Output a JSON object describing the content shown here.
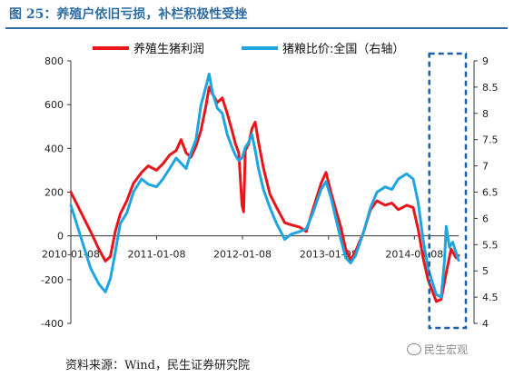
{
  "figure": {
    "title": "图 25：养殖户依旧亏损，补栏积极性受挫",
    "source": "资料来源：Wind，民生证券研究院",
    "watermark": "民生宏观"
  },
  "chart_data": {
    "type": "line",
    "x_tick_labels": [
      "2010-01-08",
      "2011-01-08",
      "2012-01-08",
      "2013-01-08",
      "2014-01-08"
    ],
    "x_range": [
      "2010-01-08",
      "2014-07-15"
    ],
    "y_left": {
      "range": [
        -400,
        800
      ],
      "ticks": [
        -400,
        -200,
        0,
        200,
        400,
        600,
        800
      ]
    },
    "y_right": {
      "range": [
        4,
        9
      ],
      "ticks": [
        4,
        4.5,
        5,
        5.5,
        6,
        6.5,
        7,
        7.5,
        8,
        8.5,
        9
      ]
    },
    "legend_position": "top",
    "grid": false,
    "series": [
      {
        "name": "养殖生猪利润",
        "axis": "left",
        "color": "#e8151b",
        "points": [
          [
            "2010-01-08",
            200
          ],
          [
            "2010-02-05",
            140
          ],
          [
            "2010-03-05",
            80
          ],
          [
            "2010-04-02",
            20
          ],
          [
            "2010-05-07",
            -60
          ],
          [
            "2010-06-04",
            -115
          ],
          [
            "2010-06-25",
            -95
          ],
          [
            "2010-07-16",
            20
          ],
          [
            "2010-08-06",
            100
          ],
          [
            "2010-09-03",
            160
          ],
          [
            "2010-10-01",
            240
          ],
          [
            "2010-11-05",
            290
          ],
          [
            "2010-12-03",
            320
          ],
          [
            "2011-01-07",
            300
          ],
          [
            "2011-02-04",
            330
          ],
          [
            "2011-03-04",
            370
          ],
          [
            "2011-04-01",
            390
          ],
          [
            "2011-04-22",
            440
          ],
          [
            "2011-05-13",
            380
          ],
          [
            "2011-06-03",
            360
          ],
          [
            "2011-06-24",
            410
          ],
          [
            "2011-07-15",
            480
          ],
          [
            "2011-08-05",
            590
          ],
          [
            "2011-08-19",
            680
          ],
          [
            "2011-09-02",
            650
          ],
          [
            "2011-09-23",
            610
          ],
          [
            "2011-10-14",
            630
          ],
          [
            "2011-11-04",
            560
          ],
          [
            "2011-11-25",
            480
          ],
          [
            "2011-12-09",
            420
          ],
          [
            "2011-12-23",
            380
          ],
          [
            "2012-01-06",
            140
          ],
          [
            "2012-01-13",
            110
          ],
          [
            "2012-01-20",
            390
          ],
          [
            "2012-02-03",
            420
          ],
          [
            "2012-02-17",
            490
          ],
          [
            "2012-03-02",
            520
          ],
          [
            "2012-03-16",
            430
          ],
          [
            "2012-04-06",
            310
          ],
          [
            "2012-05-04",
            190
          ],
          [
            "2012-06-01",
            130
          ],
          [
            "2012-07-06",
            60
          ],
          [
            "2012-08-03",
            50
          ],
          [
            "2012-09-07",
            40
          ],
          [
            "2012-10-05",
            20
          ],
          [
            "2012-11-02",
            120
          ],
          [
            "2012-12-07",
            240
          ],
          [
            "2012-12-28",
            290
          ],
          [
            "2013-01-18",
            200
          ],
          [
            "2013-02-08",
            120
          ],
          [
            "2013-03-01",
            40
          ],
          [
            "2013-03-22",
            -60
          ],
          [
            "2013-04-12",
            -110
          ],
          [
            "2013-05-03",
            -70
          ],
          [
            "2013-06-07",
            20
          ],
          [
            "2013-07-05",
            120
          ],
          [
            "2013-08-02",
            160
          ],
          [
            "2013-09-06",
            140
          ],
          [
            "2013-10-04",
            150
          ],
          [
            "2013-11-01",
            120
          ],
          [
            "2013-12-06",
            140
          ],
          [
            "2014-01-03",
            130
          ],
          [
            "2014-01-24",
            30
          ],
          [
            "2014-02-14",
            -100
          ],
          [
            "2014-03-07",
            -200
          ],
          [
            "2014-03-28",
            -260
          ],
          [
            "2014-04-11",
            -300
          ],
          [
            "2014-05-02",
            -290
          ],
          [
            "2014-05-23",
            -170
          ],
          [
            "2014-06-13",
            -60
          ],
          [
            "2014-07-04",
            -100
          ],
          [
            "2014-07-15",
            -90
          ]
        ]
      },
      {
        "name": "猪粮比价:全国（右轴）",
        "axis": "right",
        "color": "#1fa5e0",
        "points": [
          [
            "2010-01-08",
            6.25
          ],
          [
            "2010-02-05",
            5.85
          ],
          [
            "2010-03-05",
            5.45
          ],
          [
            "2010-04-02",
            5.05
          ],
          [
            "2010-05-07",
            4.75
          ],
          [
            "2010-06-04",
            4.6
          ],
          [
            "2010-06-25",
            4.85
          ],
          [
            "2010-07-16",
            5.35
          ],
          [
            "2010-08-06",
            5.9
          ],
          [
            "2010-09-03",
            6.1
          ],
          [
            "2010-10-01",
            6.5
          ],
          [
            "2010-11-05",
            6.75
          ],
          [
            "2010-12-03",
            6.65
          ],
          [
            "2011-01-07",
            6.6
          ],
          [
            "2011-02-04",
            6.75
          ],
          [
            "2011-03-04",
            6.95
          ],
          [
            "2011-04-01",
            7.15
          ],
          [
            "2011-04-22",
            7.05
          ],
          [
            "2011-05-13",
            6.95
          ],
          [
            "2011-06-03",
            7.25
          ],
          [
            "2011-06-24",
            7.5
          ],
          [
            "2011-07-15",
            8.15
          ],
          [
            "2011-08-05",
            8.5
          ],
          [
            "2011-08-19",
            8.75
          ],
          [
            "2011-09-02",
            8.4
          ],
          [
            "2011-09-23",
            8.1
          ],
          [
            "2011-10-14",
            8.0
          ],
          [
            "2011-11-04",
            7.6
          ],
          [
            "2011-11-25",
            7.35
          ],
          [
            "2011-12-09",
            7.2
          ],
          [
            "2011-12-23",
            7.1
          ],
          [
            "2012-01-06",
            7.15
          ],
          [
            "2012-01-20",
            7.35
          ],
          [
            "2012-02-03",
            7.45
          ],
          [
            "2012-02-17",
            7.6
          ],
          [
            "2012-03-02",
            7.3
          ],
          [
            "2012-03-16",
            6.95
          ],
          [
            "2012-04-06",
            6.55
          ],
          [
            "2012-05-04",
            6.2
          ],
          [
            "2012-06-01",
            5.9
          ],
          [
            "2012-07-06",
            5.6
          ],
          [
            "2012-08-03",
            5.7
          ],
          [
            "2012-09-07",
            5.75
          ],
          [
            "2012-10-05",
            5.8
          ],
          [
            "2012-11-02",
            6.1
          ],
          [
            "2012-12-07",
            6.55
          ],
          [
            "2012-12-28",
            6.7
          ],
          [
            "2013-01-18",
            6.4
          ],
          [
            "2013-02-08",
            6.0
          ],
          [
            "2013-03-01",
            5.6
          ],
          [
            "2013-03-22",
            5.25
          ],
          [
            "2013-04-12",
            5.15
          ],
          [
            "2013-05-03",
            5.3
          ],
          [
            "2013-06-07",
            5.75
          ],
          [
            "2013-07-05",
            6.2
          ],
          [
            "2013-08-02",
            6.5
          ],
          [
            "2013-09-06",
            6.6
          ],
          [
            "2013-10-04",
            6.55
          ],
          [
            "2013-11-01",
            6.75
          ],
          [
            "2013-12-06",
            6.85
          ],
          [
            "2014-01-03",
            6.75
          ],
          [
            "2014-01-24",
            6.3
          ],
          [
            "2014-02-14",
            5.6
          ],
          [
            "2014-03-07",
            5.05
          ],
          [
            "2014-03-28",
            4.75
          ],
          [
            "2014-04-11",
            4.55
          ],
          [
            "2014-05-02",
            4.5
          ],
          [
            "2014-05-16",
            5.2
          ],
          [
            "2014-05-23",
            5.85
          ],
          [
            "2014-06-06",
            5.45
          ],
          [
            "2014-06-20",
            5.55
          ],
          [
            "2014-07-04",
            5.35
          ],
          [
            "2014-07-15",
            5.2
          ]
        ]
      }
    ],
    "annotation": {
      "shape": "dashed-box",
      "color": "#1f5fa8",
      "x_from": "2014-03-20",
      "x_to": "2014-07-15"
    }
  }
}
